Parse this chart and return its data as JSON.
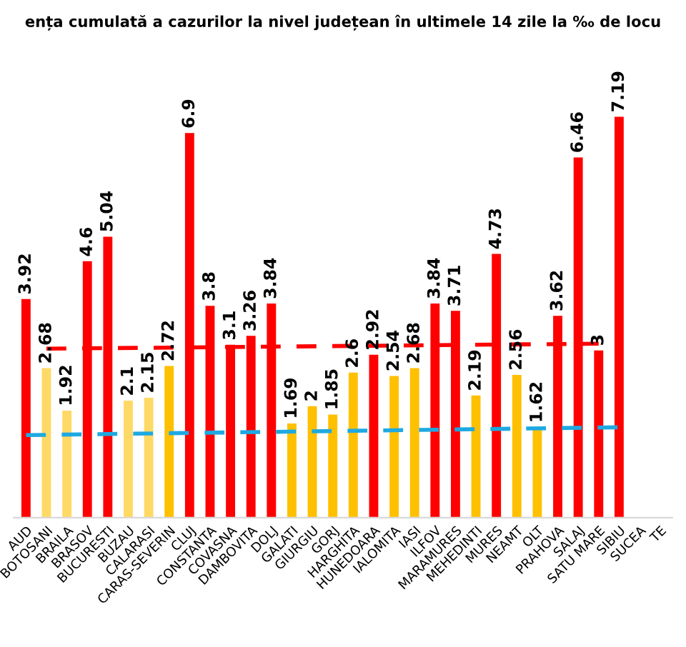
{
  "chart_data": {
    "type": "bar",
    "title": "ența cumulată a cazurilor la nivel județean în ultimele 14 zile la ‰ de locu",
    "categories": [
      "AUD",
      "BOTOSANI",
      "BRAILA",
      "BRASOV",
      "BUCURESTI",
      "BUZAU",
      "CALARASI",
      "CARAS-SEVERIN",
      "CLUJ",
      "CONSTANTA",
      "COVASNA",
      "DAMBOVITA",
      "DOLJ",
      "GALATI",
      "GIURGIU",
      "GORJ",
      "HARGHITA",
      "HUNEDOARA",
      "IALOMITA",
      "IASI",
      "ILFOV",
      "MARAMURES",
      "MEHEDINTI",
      "MURES",
      "NEAMT",
      "OLT",
      "PRAHOVA",
      "SALAJ",
      "SATU MARE",
      "SIBIU",
      "SUCEA",
      "TE"
    ],
    "series": [
      {
        "values": [
          3.92,
          2.68,
          1.92,
          4.6,
          5.04,
          2.1,
          2.15,
          2.72,
          6.9,
          3.8,
          3.1,
          3.26,
          3.84,
          1.69,
          2,
          1.85,
          2.6,
          2.92,
          2.54,
          2.68,
          3.84,
          3.71,
          2.19,
          4.73,
          2.56,
          1.62,
          3.62,
          6.46,
          3,
          7.19,
          null,
          null
        ],
        "value_labels": [
          "3.92",
          "2.68",
          "1.92",
          "4.6",
          "5.04",
          "2.1",
          "2.15",
          "2.72",
          "6.9",
          "3.8",
          "3.1",
          "3.26",
          "3.84",
          "1.69",
          "2",
          "1.85",
          "2.6",
          "2.92",
          "2.54",
          "2.68",
          "3.84",
          "3.71",
          "2.19",
          "4.73",
          "2.56",
          "1.62",
          "3.62",
          "6.46",
          "3",
          "7.19",
          null,
          null
        ],
        "colors": [
          "#ff0000",
          "#ffd966",
          "#ffd966",
          "#ff0000",
          "#ff0000",
          "#ffd966",
          "#ffd966",
          "#ffc000",
          "#ff0000",
          "#ff0000",
          "#ff0000",
          "#ff0000",
          "#ff0000",
          "#ffc000",
          "#ffc000",
          "#ffc000",
          "#ffc000",
          "#ff0000",
          "#ffc000",
          "#ffc000",
          "#ff0000",
          "#ff0000",
          "#ffc000",
          "#ff0000",
          "#ffc000",
          "#ffc000",
          "#ff0000",
          "#ff0000",
          "#ff0000",
          "#ff0000",
          "#ff0000",
          "#ff0000"
        ]
      },
      {
        "type": "line",
        "color": "#ff0000",
        "line_style": "dashed",
        "values": [
          null,
          3.03,
          null,
          null,
          null,
          null,
          null,
          null,
          null,
          null,
          null,
          null,
          null,
          null,
          null,
          null,
          null,
          null,
          null,
          null,
          null,
          null,
          null,
          null,
          null,
          null,
          null,
          null,
          3.12,
          null,
          null,
          null
        ]
      },
      {
        "type": "line",
        "color": "#1fa9e1",
        "line_style": "dashed",
        "values": [
          1.48,
          null,
          null,
          null,
          null,
          null,
          null,
          null,
          null,
          null,
          null,
          null,
          null,
          null,
          null,
          null,
          null,
          null,
          null,
          null,
          null,
          null,
          null,
          null,
          null,
          null,
          null,
          null,
          null,
          1.62,
          null,
          null
        ]
      }
    ],
    "grid": false,
    "legend": false
  }
}
